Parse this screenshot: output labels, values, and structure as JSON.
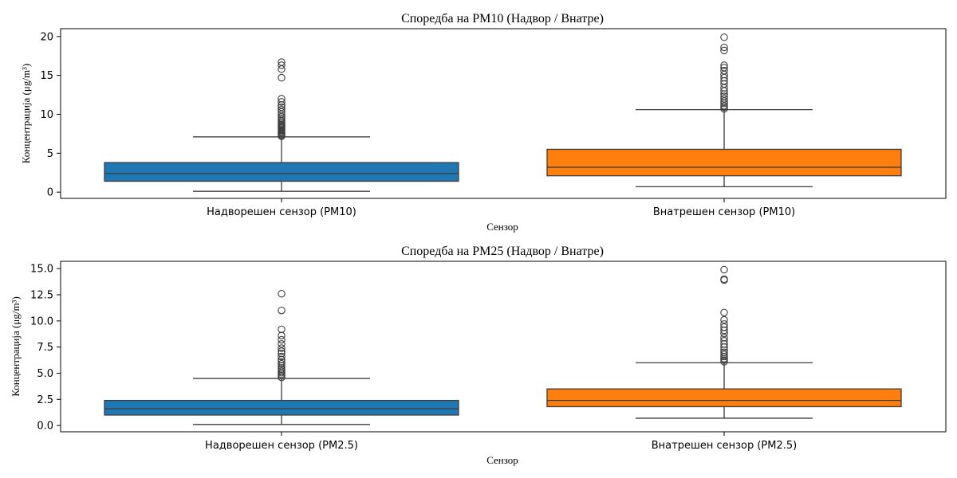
{
  "chart_data": [
    {
      "type": "box",
      "title": "Споредба на PM10 (Надвор / Внатре)",
      "xlabel": "Сензор",
      "ylabel": "Концентрација (μg/m³)",
      "yticks": [
        "0",
        "5",
        "10",
        "15",
        "20"
      ],
      "ylim": [
        -0.8,
        21.0
      ],
      "categories": [
        "Надворешен сензор (PM10)",
        "Внатрешен сензор (PM10)"
      ],
      "boxes": [
        {
          "color": "#1f77b4",
          "whisker_low": 0.1,
          "q1": 1.4,
          "median": 2.4,
          "q3": 3.8,
          "whisker_high": 7.1,
          "outliers": [
            7.2,
            7.35,
            7.5,
            7.65,
            7.8,
            7.95,
            8.1,
            8.25,
            8.4,
            8.55,
            8.7,
            8.9,
            9.1,
            9.3,
            9.5,
            9.7,
            10.0,
            10.3,
            10.6,
            10.9,
            11.2,
            11.6,
            12.0,
            14.7,
            15.8,
            16.3,
            16.7
          ]
        },
        {
          "color": "#ff7f0e",
          "whisker_low": 0.7,
          "q1": 2.1,
          "median": 3.2,
          "q3": 5.5,
          "whisker_high": 10.6,
          "outliers": [
            10.7,
            10.9,
            11.1,
            11.4,
            11.7,
            12.0,
            12.3,
            12.6,
            13.0,
            13.4,
            13.9,
            14.3,
            14.7,
            15.1,
            15.6,
            16.0,
            16.3,
            18.2,
            18.6,
            19.9
          ]
        }
      ]
    },
    {
      "type": "box",
      "title": "Споредба на PM25 (Надвор / Внатре)",
      "xlabel": "Сензор",
      "ylabel": "Концентрација (μg/m³)",
      "yticks": [
        "0.0",
        "2.5",
        "5.0",
        "7.5",
        "10.0",
        "12.5",
        "15.0"
      ],
      "ylim": [
        -0.6,
        15.7
      ],
      "categories": [
        "Надворешен сензор (PM2.5)",
        "Внатрешен сензор (PM2.5)"
      ],
      "boxes": [
        {
          "color": "#1f77b4",
          "whisker_low": 0.1,
          "q1": 1.0,
          "median": 1.6,
          "q3": 2.4,
          "whisker_high": 4.5,
          "outliers": [
            4.6,
            4.75,
            4.9,
            5.05,
            5.2,
            5.35,
            5.5,
            5.7,
            5.9,
            6.1,
            6.3,
            6.6,
            6.9,
            7.1,
            7.4,
            7.8,
            8.2,
            8.6,
            9.2,
            11.0,
            12.6
          ]
        },
        {
          "color": "#ff7f0e",
          "whisker_low": 0.7,
          "q1": 1.8,
          "median": 2.4,
          "q3": 3.5,
          "whisker_high": 6.0,
          "outliers": [
            6.1,
            6.25,
            6.4,
            6.6,
            6.8,
            7.0,
            7.2,
            7.5,
            7.8,
            8.1,
            8.4,
            8.8,
            9.1,
            9.4,
            9.7,
            10.1,
            10.8,
            13.9,
            14.0,
            14.9
          ]
        }
      ]
    }
  ]
}
